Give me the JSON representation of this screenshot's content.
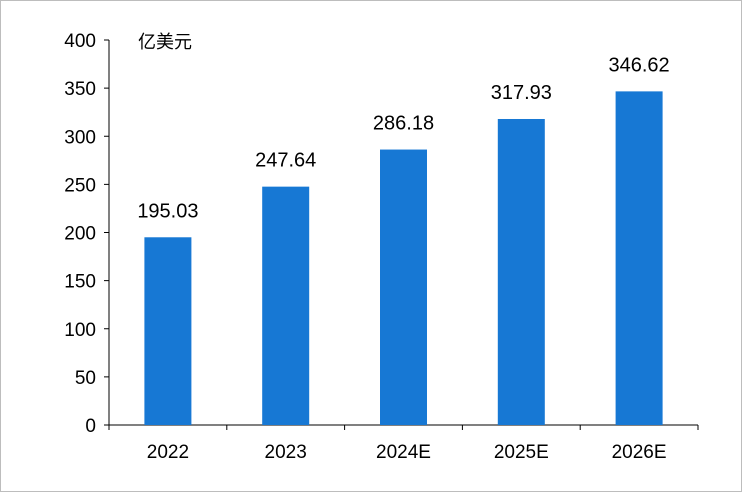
{
  "chart_data": {
    "type": "bar",
    "unit_label": "亿美元",
    "categories": [
      "2022",
      "2023",
      "2024E",
      "2025E",
      "2026E"
    ],
    "values": [
      195.03,
      247.64,
      286.18,
      317.93,
      346.62
    ],
    "value_labels": [
      "195.03",
      "247.64",
      "286.18",
      "317.93",
      "346.62"
    ],
    "ylim": [
      0,
      400
    ],
    "yticks": [
      0,
      50,
      100,
      150,
      200,
      250,
      300,
      350,
      400
    ],
    "bar_color": "#1778d4",
    "grid": false,
    "legend": "none"
  }
}
